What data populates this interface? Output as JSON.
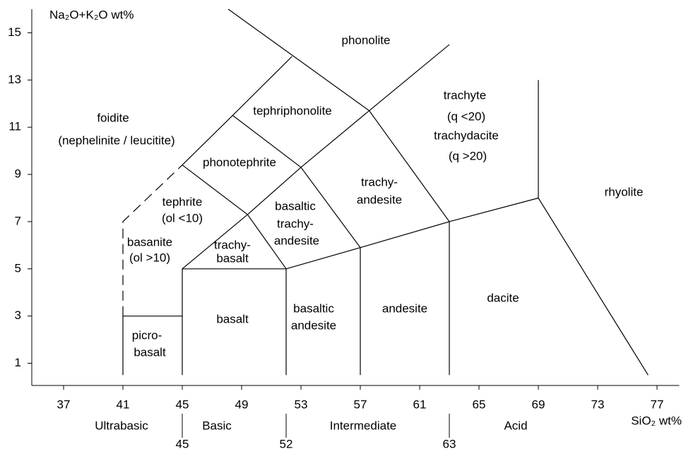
{
  "chart_data": {
    "type": "classification",
    "y_label": "Na₂O+K₂O wt%",
    "x_label": "SiO₂ wt%",
    "xlim": [
      35,
      78.5
    ],
    "ylim": [
      0,
      16
    ],
    "xticks": [
      37,
      41,
      45,
      49,
      53,
      57,
      61,
      65,
      69,
      73,
      77
    ],
    "yticks": [
      1,
      3,
      5,
      7,
      9,
      11,
      13,
      15
    ],
    "color": "#000000",
    "boundaries": [
      {
        "style": "solid",
        "points": [
          [
            41,
            0.5
          ],
          [
            41,
            3
          ],
          [
            45,
            3
          ]
        ]
      },
      {
        "style": "solid",
        "points": [
          [
            45,
            0.5
          ],
          [
            45,
            5
          ],
          [
            52,
            5
          ],
          [
            52,
            0.5
          ]
        ]
      },
      {
        "style": "solid",
        "points": [
          [
            57,
            0.5
          ],
          [
            57,
            5.9
          ]
        ]
      },
      {
        "style": "solid",
        "points": [
          [
            63,
            0.5
          ],
          [
            63,
            7
          ]
        ]
      },
      {
        "style": "dashed",
        "points": [
          [
            41,
            3
          ],
          [
            41,
            7
          ],
          [
            45,
            9.4
          ]
        ]
      },
      {
        "style": "solid",
        "points": [
          [
            45,
            9.4
          ],
          [
            48.4,
            11.5
          ],
          [
            52.4,
            14
          ]
        ]
      },
      {
        "style": "solid",
        "points": [
          [
            45,
            5
          ],
          [
            49.4,
            7.3
          ],
          [
            53,
            9.3
          ],
          [
            57.6,
            11.7
          ],
          [
            63,
            14.5
          ]
        ]
      },
      {
        "style": "solid",
        "points": [
          [
            52,
            5
          ],
          [
            57,
            5.9
          ],
          [
            63,
            7
          ],
          [
            69,
            8
          ],
          [
            76.4,
            0.5
          ]
        ]
      },
      {
        "style": "solid",
        "points": [
          [
            69,
            8
          ],
          [
            69,
            13
          ]
        ]
      },
      {
        "style": "solid",
        "points": [
          [
            45,
            9.4
          ],
          [
            49.4,
            7.3
          ],
          [
            52,
            5
          ]
        ]
      },
      {
        "style": "solid",
        "points": [
          [
            48.4,
            11.5
          ],
          [
            53,
            9.3
          ],
          [
            57,
            5.9
          ]
        ]
      },
      {
        "style": "solid",
        "points": [
          [
            48.1,
            16
          ],
          [
            57.6,
            11.7
          ],
          [
            63,
            7
          ]
        ]
      }
    ],
    "fields": [
      {
        "lines": [
          "phonolite"
        ]
      },
      {
        "lines": [
          "tephriphonolite"
        ]
      },
      {
        "lines": [
          "foidite",
          "(nephelinite / leucitite)"
        ]
      },
      {
        "lines": [
          "trachyte",
          "(q <20)",
          "trachydacite",
          "(q >20)"
        ]
      },
      {
        "lines": [
          "phonotephrite"
        ]
      },
      {
        "lines": [
          "tephrite",
          "(ol <10)"
        ]
      },
      {
        "lines": [
          "trachy-",
          "andesite"
        ]
      },
      {
        "lines": [
          "rhyolite"
        ]
      },
      {
        "lines": [
          "basaltic",
          "trachy-",
          "andesite"
        ]
      },
      {
        "lines": [
          "basanite",
          "(ol >10)"
        ]
      },
      {
        "lines": [
          "trachy-",
          "basalt"
        ]
      },
      {
        "lines": [
          "basalt"
        ]
      },
      {
        "lines": [
          "basaltic",
          "andesite"
        ]
      },
      {
        "lines": [
          "andesite"
        ]
      },
      {
        "lines": [
          "dacite"
        ]
      },
      {
        "lines": [
          "picro-",
          "basalt"
        ]
      }
    ],
    "classes": [
      "Ultrabasic",
      "Basic",
      "Intermediate",
      "Acid"
    ],
    "class_boundaries": [
      45,
      52,
      63
    ]
  }
}
